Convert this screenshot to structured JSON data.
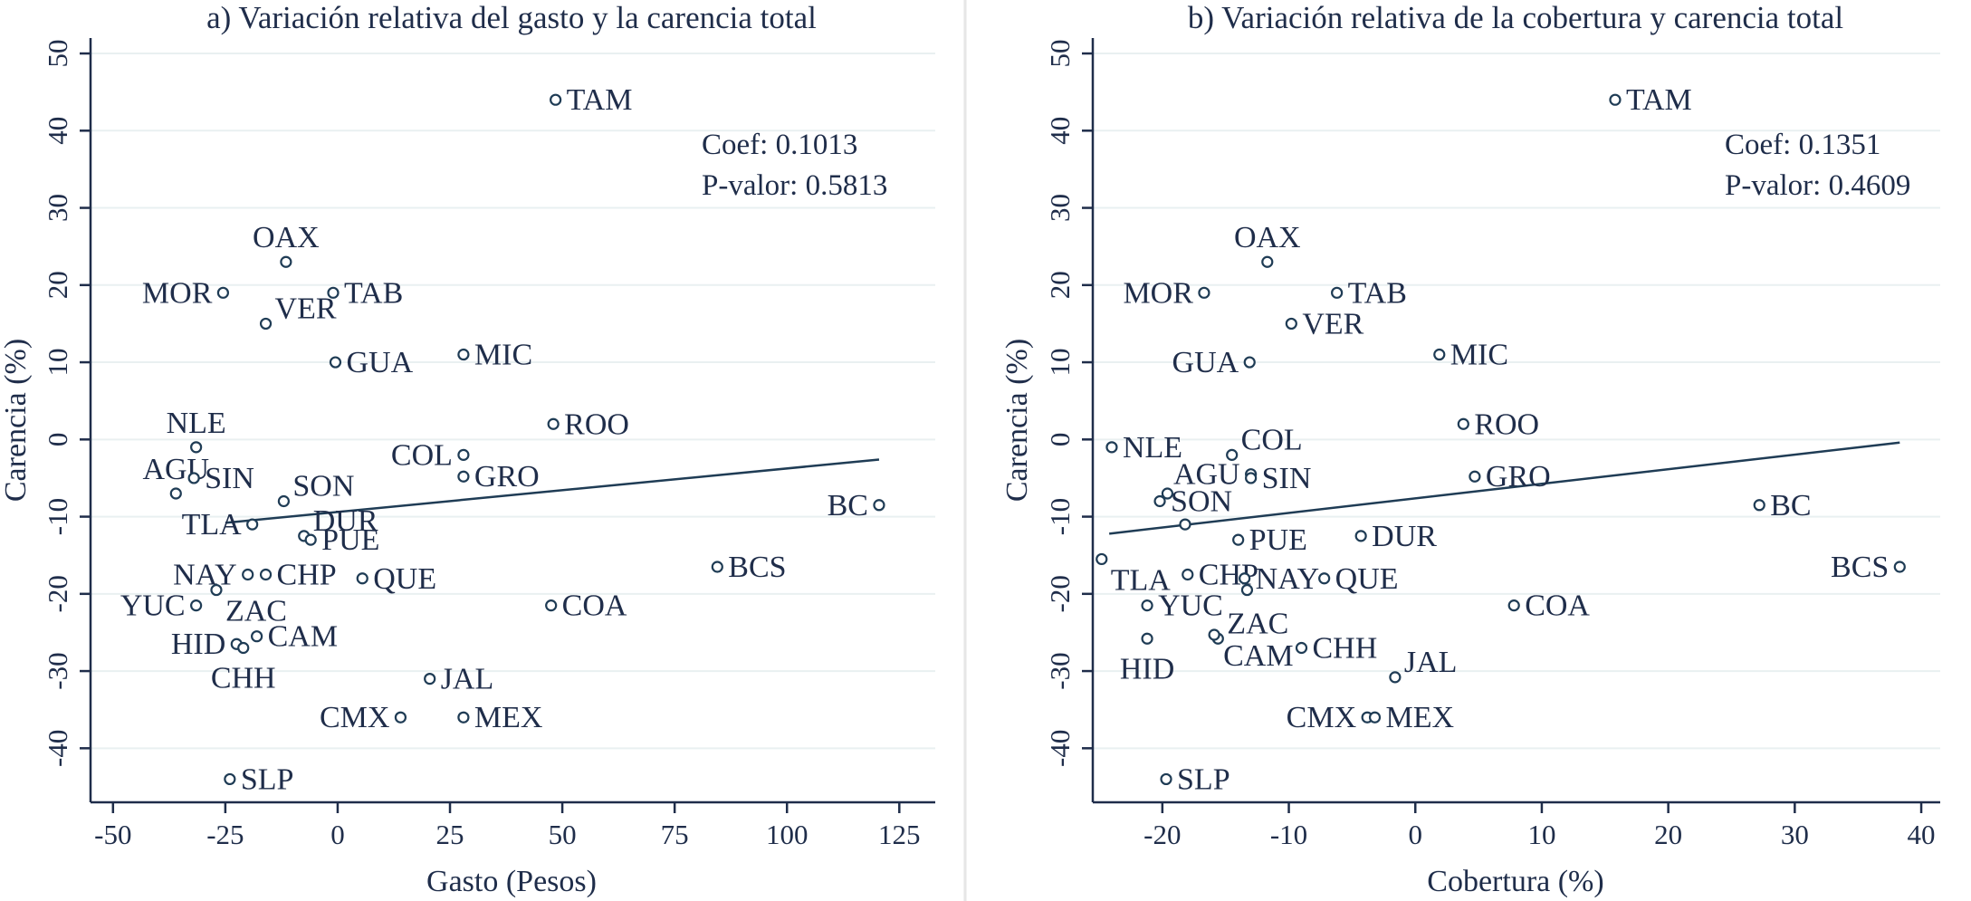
{
  "chart_data": [
    {
      "type": "scatter",
      "title": "a) Variación relativa del gasto y la carencia total",
      "xlabel": "Gasto (Pesos)",
      "ylabel": "Carencia (%)",
      "xlim": [
        -55,
        133
      ],
      "ylim": [
        -47,
        52
      ],
      "xticks": [
        -50,
        -25,
        0,
        25,
        50,
        75,
        100,
        125
      ],
      "xtick_labels": [
        "-50",
        "-25",
        "0",
        "25",
        "50",
        "75",
        "100",
        "125"
      ],
      "yticks": [
        -40,
        -30,
        -20,
        -10,
        0,
        10,
        20,
        30,
        40,
        50
      ],
      "ytick_labels": [
        "-40",
        "-30",
        "-20",
        "-10",
        "0",
        "10",
        "20",
        "30",
        "40",
        "50"
      ],
      "stats": {
        "coef": "Coef: 0.1013",
        "pvalue": "P-valor: 0.5813"
      },
      "fit_line": [
        [
          -25,
          -10.8
        ],
        [
          120.5,
          -2.6
        ]
      ],
      "points": [
        {
          "label": "TAM",
          "x": 48.5,
          "y": 44,
          "pos": "right"
        },
        {
          "label": "OAX",
          "x": -11.5,
          "y": 23,
          "pos": "above"
        },
        {
          "label": "MOR",
          "x": -25.5,
          "y": 19,
          "pos": "left"
        },
        {
          "label": "VER",
          "x": -16,
          "y": 15,
          "pos": "above-right"
        },
        {
          "label": "TAB",
          "x": -1,
          "y": 19,
          "pos": "right"
        },
        {
          "label": "GUA",
          "x": -0.5,
          "y": 10,
          "pos": "right"
        },
        {
          "label": "MIC",
          "x": 28,
          "y": 11,
          "pos": "right"
        },
        {
          "label": "ROO",
          "x": 48,
          "y": 2,
          "pos": "right"
        },
        {
          "label": "NLE",
          "x": -31.5,
          "y": -1,
          "pos": "above"
        },
        {
          "label": "COL",
          "x": 28,
          "y": -2,
          "pos": "left"
        },
        {
          "label": "GRO",
          "x": 28,
          "y": -4.8,
          "pos": "right"
        },
        {
          "label": "AGU",
          "x": -36,
          "y": -7,
          "pos": "above"
        },
        {
          "label": "SIN",
          "x": -32,
          "y": -5,
          "pos": "right"
        },
        {
          "label": "SON",
          "x": -12,
          "y": -8,
          "pos": "above-right"
        },
        {
          "label": "DUR",
          "x": -7.5,
          "y": -12.5,
          "pos": "above-right"
        },
        {
          "label": "TLA",
          "x": -19,
          "y": -11,
          "pos": "left"
        },
        {
          "label": "BC",
          "x": 120.5,
          "y": -8.5,
          "pos": "left"
        },
        {
          "label": "PUE",
          "x": -6,
          "y": -13,
          "pos": "right"
        },
        {
          "label": "NAY",
          "x": -20,
          "y": -17.5,
          "pos": "left"
        },
        {
          "label": "CHP",
          "x": -16,
          "y": -17.5,
          "pos": "right"
        },
        {
          "label": "QUE",
          "x": 5.5,
          "y": -18,
          "pos": "right"
        },
        {
          "label": "BCS",
          "x": 84.5,
          "y": -16.5,
          "pos": "right"
        },
        {
          "label": "YUC",
          "x": -31.5,
          "y": -21.5,
          "pos": "left"
        },
        {
          "label": "COA",
          "x": 47.5,
          "y": -21.5,
          "pos": "right"
        },
        {
          "label": "ZAC",
          "x": -27,
          "y": -19.5,
          "pos": "below-right"
        },
        {
          "label": "HID",
          "x": -22.5,
          "y": -26.5,
          "pos": "left"
        },
        {
          "label": "CAM",
          "x": -18,
          "y": -25.5,
          "pos": "right"
        },
        {
          "label": "CHH",
          "x": -21,
          "y": -27,
          "pos": "below"
        },
        {
          "label": "JAL",
          "x": 20.5,
          "y": -31,
          "pos": "right"
        },
        {
          "label": "CMX",
          "x": 14,
          "y": -36,
          "pos": "left"
        },
        {
          "label": "MEX",
          "x": 28,
          "y": -36,
          "pos": "right"
        },
        {
          "label": "SLP",
          "x": -24,
          "y": -44,
          "pos": "right"
        }
      ]
    },
    {
      "type": "scatter",
      "title": "b) Variación relativa de la cobertura y carencia total",
      "xlabel": "Cobertura (%)",
      "ylabel": "Carencia (%)",
      "xlim": [
        -25.5,
        41.5
      ],
      "ylim": [
        -47,
        52
      ],
      "xticks": [
        -20,
        -10,
        0,
        10,
        20,
        30,
        40
      ],
      "xtick_labels": [
        "-20",
        "-10",
        "0",
        "10",
        "20",
        "30",
        "40"
      ],
      "yticks": [
        -40,
        -30,
        -20,
        -10,
        0,
        10,
        20,
        30,
        40,
        50
      ],
      "ytick_labels": [
        "-40",
        "-30",
        "-20",
        "-10",
        "0",
        "10",
        "20",
        "30",
        "40",
        "50"
      ],
      "stats": {
        "coef": "Coef: 0.1351",
        "pvalue": "P-valor: 0.4609"
      },
      "fit_line": [
        [
          -24.2,
          -12.2
        ],
        [
          38.3,
          -0.4
        ]
      ],
      "points": [
        {
          "label": "TAM",
          "x": 15.8,
          "y": 44,
          "pos": "right"
        },
        {
          "label": "OAX",
          "x": -11.7,
          "y": 23,
          "pos": "above"
        },
        {
          "label": "MOR",
          "x": -16.7,
          "y": 19,
          "pos": "left"
        },
        {
          "label": "TAB",
          "x": -6.2,
          "y": 19,
          "pos": "right"
        },
        {
          "label": "VER",
          "x": -9.8,
          "y": 15,
          "pos": "right"
        },
        {
          "label": "GUA",
          "x": -13.1,
          "y": 10,
          "pos": "left"
        },
        {
          "label": "MIC",
          "x": 1.9,
          "y": 11,
          "pos": "right"
        },
        {
          "label": "NLE",
          "x": -24,
          "y": -1,
          "pos": "right"
        },
        {
          "label": "COL",
          "x": -14.5,
          "y": -2,
          "pos": "above-right"
        },
        {
          "label": "ROO",
          "x": 3.8,
          "y": 2,
          "pos": "right"
        },
        {
          "label": "AGU",
          "x": -13,
          "y": -4.5,
          "pos": "left"
        },
        {
          "label": "SIN",
          "x": -13,
          "y": -5,
          "pos": "right"
        },
        {
          "label": "GRO",
          "x": 4.7,
          "y": -4.8,
          "pos": "right"
        },
        {
          "label": "SON",
          "x": -20.2,
          "y": -8,
          "pos": "right"
        },
        {
          "label": "BC",
          "x": 27.2,
          "y": -8.5,
          "pos": "right"
        },
        {
          "label": "",
          "x": -19.6,
          "y": -7,
          "pos": "none"
        },
        {
          "label": "",
          "x": -18.2,
          "y": -11,
          "pos": "none"
        },
        {
          "label": "DUR",
          "x": -4.3,
          "y": -12.5,
          "pos": "right"
        },
        {
          "label": "PUE",
          "x": -14,
          "y": -13,
          "pos": "right"
        },
        {
          "label": "TLA",
          "x": -24.8,
          "y": -15.5,
          "pos": "below-right"
        },
        {
          "label": "CHP",
          "x": -18,
          "y": -17.5,
          "pos": "right"
        },
        {
          "label": "NAY",
          "x": -13.5,
          "y": -18,
          "pos": "right"
        },
        {
          "label": "QUE",
          "x": -7.2,
          "y": -18,
          "pos": "right"
        },
        {
          "label": "BCS",
          "x": 38.3,
          "y": -16.5,
          "pos": "left"
        },
        {
          "label": "",
          "x": -13.3,
          "y": -19.5,
          "pos": "none"
        },
        {
          "label": "YUC",
          "x": -21.2,
          "y": -21.5,
          "pos": "right"
        },
        {
          "label": "COA",
          "x": 7.8,
          "y": -21.5,
          "pos": "right"
        },
        {
          "label": "ZAC",
          "x": -15.6,
          "y": -25.8,
          "pos": "above-right"
        },
        {
          "label": "HID",
          "x": -21.2,
          "y": -25.8,
          "pos": "below"
        },
        {
          "label": "CAM",
          "x": -15.9,
          "y": -25.3,
          "pos": "below-right"
        },
        {
          "label": "CHH",
          "x": -9,
          "y": -27,
          "pos": "right"
        },
        {
          "label": "JAL",
          "x": -1.6,
          "y": -30.8,
          "pos": "above-right"
        },
        {
          "label": "CMX",
          "x": -3.8,
          "y": -36,
          "pos": "left"
        },
        {
          "label": "MEX",
          "x": -3.2,
          "y": -36,
          "pos": "right"
        },
        {
          "label": "SLP",
          "x": -19.7,
          "y": -44,
          "pos": "right"
        }
      ]
    }
  ]
}
